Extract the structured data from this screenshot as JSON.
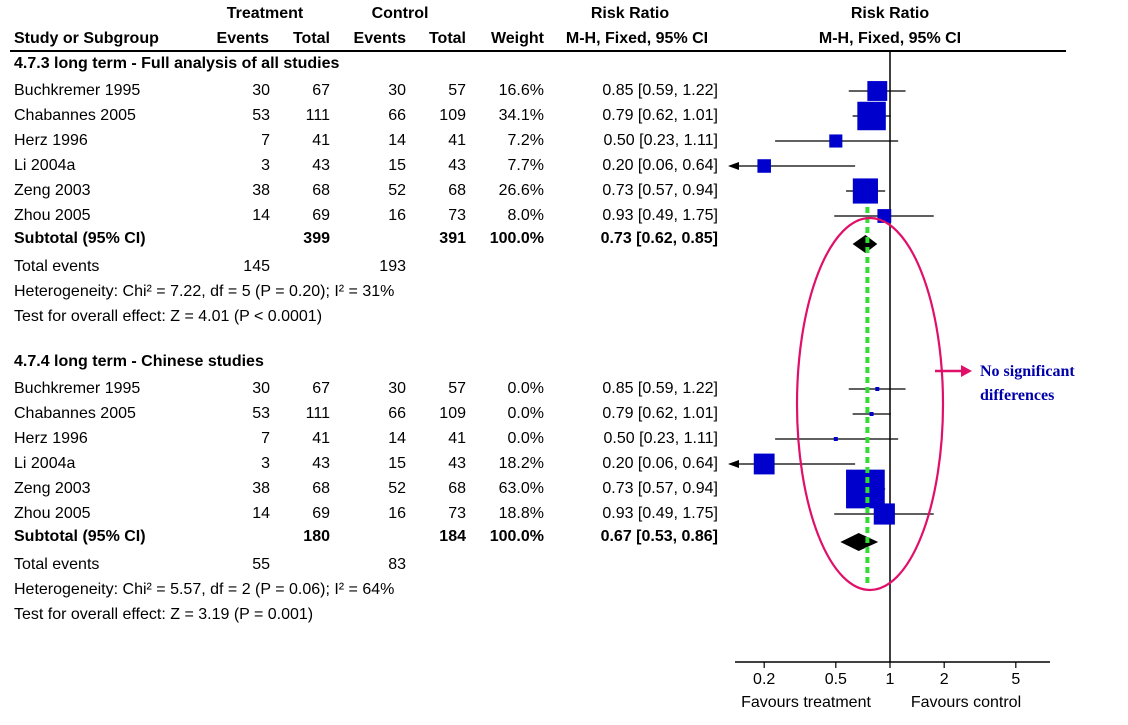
{
  "header": {
    "group_treatment": "Treatment",
    "group_control": "Control",
    "col_study": "Study or Subgroup",
    "col_events": "Events",
    "col_total": "Total",
    "col_weight": "Weight",
    "rr_title": "Risk Ratio",
    "rr_method": "M-H, Fixed, 95% CI",
    "plot_title": "Risk Ratio",
    "plot_method": "M-H, Fixed, 95% CI"
  },
  "groups": [
    {
      "title": "4.7.3 long term - Full analysis of all studies",
      "studies": [
        {
          "name": "Buchkremer 1995",
          "t_events": "30",
          "t_total": "67",
          "c_events": "30",
          "c_total": "57",
          "weight": "16.6%",
          "ci": "0.85 [0.59, 1.22]"
        },
        {
          "name": "Chabannes 2005",
          "t_events": "53",
          "t_total": "111",
          "c_events": "66",
          "c_total": "109",
          "weight": "34.1%",
          "ci": "0.79 [0.62, 1.01]"
        },
        {
          "name": "Herz 1996",
          "t_events": "7",
          "t_total": "41",
          "c_events": "14",
          "c_total": "41",
          "weight": "7.2%",
          "ci": "0.50 [0.23, 1.11]"
        },
        {
          "name": "Li 2004a",
          "t_events": "3",
          "t_total": "43",
          "c_events": "15",
          "c_total": "43",
          "weight": "7.7%",
          "ci": "0.20 [0.06, 0.64]"
        },
        {
          "name": "Zeng 2003",
          "t_events": "38",
          "t_total": "68",
          "c_events": "52",
          "c_total": "68",
          "weight": "26.6%",
          "ci": "0.73 [0.57, 0.94]"
        },
        {
          "name": "Zhou 2005",
          "t_events": "14",
          "t_total": "69",
          "c_events": "16",
          "c_total": "73",
          "weight": "8.0%",
          "ci": "0.93 [0.49, 1.75]"
        }
      ],
      "subtotal": {
        "label": "Subtotal (95% CI)",
        "t_total": "399",
        "c_total": "391",
        "weight": "100.0%",
        "ci": "0.73 [0.62, 0.85]"
      },
      "total_events": {
        "label": "Total events",
        "t": "145",
        "c": "193"
      },
      "heterogeneity": "Heterogeneity: Chi² = 7.22, df = 5 (P = 0.20); I² = 31%",
      "overall": "Test for overall effect: Z = 4.01 (P < 0.0001)"
    },
    {
      "title": "4.7.4 long term - Chinese studies",
      "studies": [
        {
          "name": "Buchkremer 1995",
          "t_events": "30",
          "t_total": "67",
          "c_events": "30",
          "c_total": "57",
          "weight": "0.0%",
          "ci": "0.85 [0.59, 1.22]"
        },
        {
          "name": "Chabannes 2005",
          "t_events": "53",
          "t_total": "111",
          "c_events": "66",
          "c_total": "109",
          "weight": "0.0%",
          "ci": "0.79 [0.62, 1.01]"
        },
        {
          "name": "Herz 1996",
          "t_events": "7",
          "t_total": "41",
          "c_events": "14",
          "c_total": "41",
          "weight": "0.0%",
          "ci": "0.50 [0.23, 1.11]"
        },
        {
          "name": "Li 2004a",
          "t_events": "3",
          "t_total": "43",
          "c_events": "15",
          "c_total": "43",
          "weight": "18.2%",
          "ci": "0.20 [0.06, 0.64]"
        },
        {
          "name": "Zeng 2003",
          "t_events": "38",
          "t_total": "68",
          "c_events": "52",
          "c_total": "68",
          "weight": "63.0%",
          "ci": "0.73 [0.57, 0.94]"
        },
        {
          "name": "Zhou 2005",
          "t_events": "14",
          "t_total": "69",
          "c_events": "16",
          "c_total": "73",
          "weight": "18.8%",
          "ci": "0.93 [0.49, 1.75]"
        }
      ],
      "subtotal": {
        "label": "Subtotal (95% CI)",
        "t_total": "180",
        "c_total": "184",
        "weight": "100.0%",
        "ci": "0.67 [0.53, 0.86]"
      },
      "total_events": {
        "label": "Total events",
        "t": "55",
        "c": "83"
      },
      "heterogeneity": "Heterogeneity: Chi² = 5.57, df = 2 (P = 0.06); I² = 64%",
      "overall": "Test for overall effect: Z = 3.19 (P = 0.001)"
    }
  ],
  "annotation": {
    "line1": "No significant",
    "line2": "differences"
  },
  "chart_data": {
    "type": "forest",
    "x_scale": "log",
    "xlim": [
      0.1,
      10
    ],
    "ticks": [
      "0.2",
      "0.5",
      "1",
      "2",
      "5"
    ],
    "xlabel_left": "Favours treatment",
    "xlabel_right": "Favours control",
    "null_value": 1,
    "reference_line_value": 0.73,
    "groups": [
      {
        "title": "4.7.3 long term - Full analysis of all studies",
        "studies": [
          {
            "name": "Buchkremer 1995",
            "rr": 0.85,
            "lo": 0.59,
            "hi": 1.22,
            "weight": 16.6
          },
          {
            "name": "Chabannes 2005",
            "rr": 0.79,
            "lo": 0.62,
            "hi": 1.01,
            "weight": 34.1
          },
          {
            "name": "Herz 1996",
            "rr": 0.5,
            "lo": 0.23,
            "hi": 1.11,
            "weight": 7.2
          },
          {
            "name": "Li 2004a",
            "rr": 0.2,
            "lo": 0.06,
            "hi": 0.64,
            "weight": 7.7
          },
          {
            "name": "Zeng 2003",
            "rr": 0.73,
            "lo": 0.57,
            "hi": 0.94,
            "weight": 26.6
          },
          {
            "name": "Zhou 2005",
            "rr": 0.93,
            "lo": 0.49,
            "hi": 1.75,
            "weight": 8.0
          }
        ],
        "subtotal": {
          "rr": 0.73,
          "lo": 0.62,
          "hi": 0.85
        }
      },
      {
        "title": "4.7.4 long term - Chinese studies",
        "studies": [
          {
            "name": "Buchkremer 1995",
            "rr": 0.85,
            "lo": 0.59,
            "hi": 1.22,
            "weight": 0.0
          },
          {
            "name": "Chabannes 2005",
            "rr": 0.79,
            "lo": 0.62,
            "hi": 1.01,
            "weight": 0.0
          },
          {
            "name": "Herz 1996",
            "rr": 0.5,
            "lo": 0.23,
            "hi": 1.11,
            "weight": 0.0
          },
          {
            "name": "Li 2004a",
            "rr": 0.2,
            "lo": 0.06,
            "hi": 0.64,
            "weight": 18.2
          },
          {
            "name": "Zeng 2003",
            "rr": 0.73,
            "lo": 0.57,
            "hi": 0.94,
            "weight": 63.0
          },
          {
            "name": "Zhou 2005",
            "rr": 0.93,
            "lo": 0.49,
            "hi": 1.75,
            "weight": 18.8
          }
        ],
        "subtotal": {
          "rr": 0.67,
          "lo": 0.53,
          "hi": 0.86
        }
      }
    ],
    "colors": {
      "marker": "#0000cc",
      "diamond": "#000000",
      "reference_line": "#33dd33",
      "ellipse": "#e0106a",
      "arrow": "#e0106a",
      "annotation": "#0000aa"
    }
  }
}
